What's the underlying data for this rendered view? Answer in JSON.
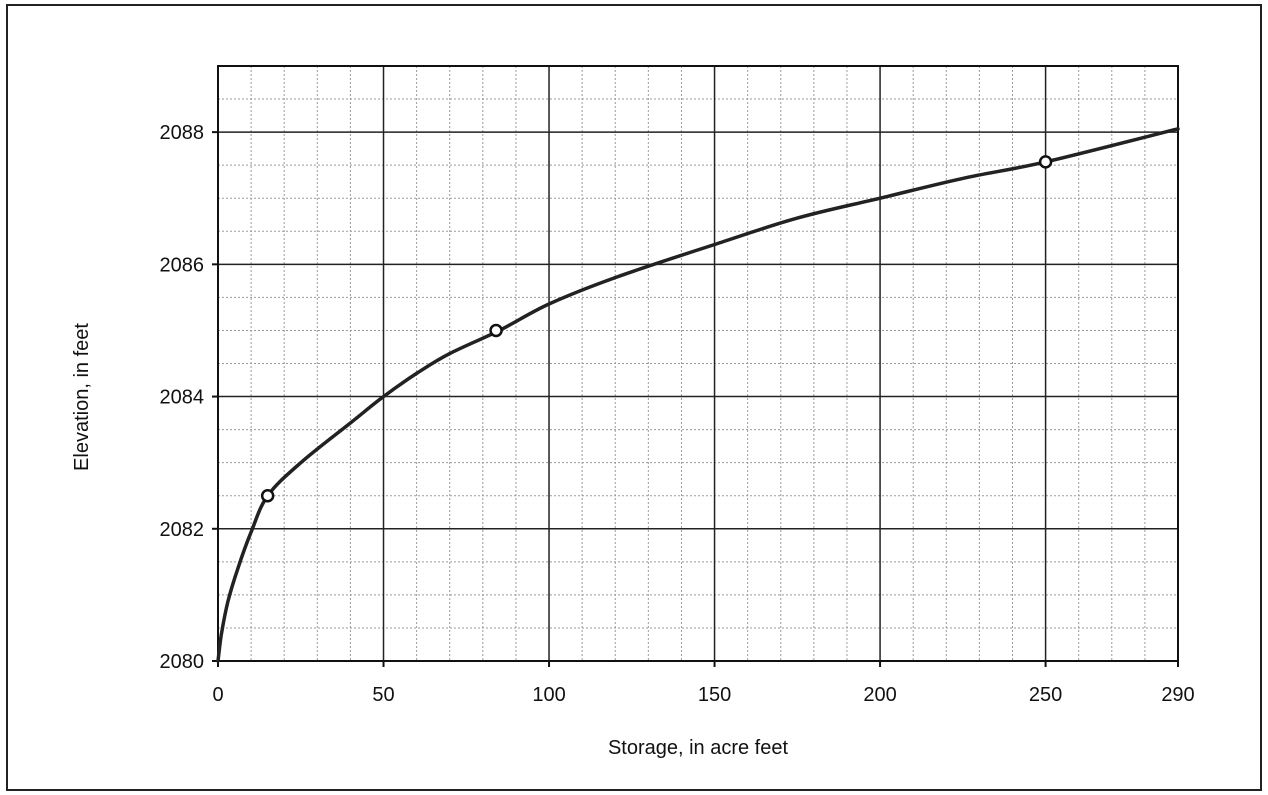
{
  "chart_data": {
    "type": "line",
    "title": "",
    "xlabel": "Storage, in acre feet",
    "ylabel": "Elevation, in feet",
    "xlim": [
      0,
      290
    ],
    "ylim": [
      2080,
      2089
    ],
    "x_ticks": [
      0,
      50,
      100,
      150,
      200,
      250,
      290
    ],
    "x_tick_labels": [
      "0",
      "50",
      "100",
      "150",
      "200",
      "250",
      "290"
    ],
    "y_ticks": [
      2080,
      2082,
      2084,
      2086,
      2088
    ],
    "y_tick_labels": [
      "2080",
      "2082",
      "2084",
      "2086",
      "2088"
    ],
    "grid": true,
    "legend": "none",
    "series": [
      {
        "curve": [
          [
            0,
            2080.0
          ],
          [
            1,
            2080.4
          ],
          [
            3,
            2080.9
          ],
          [
            6,
            2081.4
          ],
          [
            10,
            2081.95
          ],
          [
            15,
            2082.5
          ],
          [
            25,
            2083.0
          ],
          [
            40,
            2083.6
          ],
          [
            50,
            2084.0
          ],
          [
            60,
            2084.35
          ],
          [
            70,
            2084.65
          ],
          [
            85,
            2085.0
          ],
          [
            100,
            2085.4
          ],
          [
            120,
            2085.8
          ],
          [
            150,
            2086.3
          ],
          [
            175,
            2086.7
          ],
          [
            200,
            2087.0
          ],
          [
            225,
            2087.3
          ],
          [
            250,
            2087.55
          ],
          [
            290,
            2088.05
          ]
        ],
        "markers": [
          [
            15,
            2082.5
          ],
          [
            84,
            2085.0
          ],
          [
            250,
            2087.55
          ]
        ],
        "color": "#222222"
      }
    ]
  }
}
